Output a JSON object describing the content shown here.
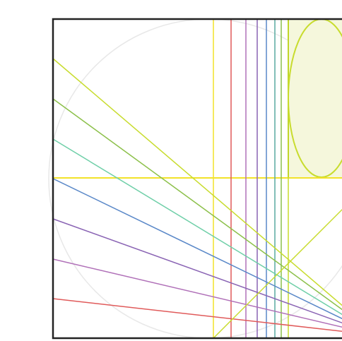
{
  "diagram": {
    "description_text": "",
    "colors": {
      "frame": "#222222",
      "guide_circle": "#e8e8e8",
      "highlight_fill": "#f5f7dc",
      "highlight_stroke": "#a8c424",
      "yellow": "#f2e22a",
      "lime": "#c8dc2e",
      "green": "#8cc04a",
      "mint": "#6fcfa8",
      "teal": "#58aaa0",
      "blue": "#5a88c8",
      "violet": "#8a64b4",
      "purple": "#a070c0",
      "pink": "#b070b8",
      "red": "#e05a5a"
    },
    "icons": [
      "square-frame",
      "guide-circle",
      "highlight-rect",
      "highlight-ellipse"
    ]
  }
}
